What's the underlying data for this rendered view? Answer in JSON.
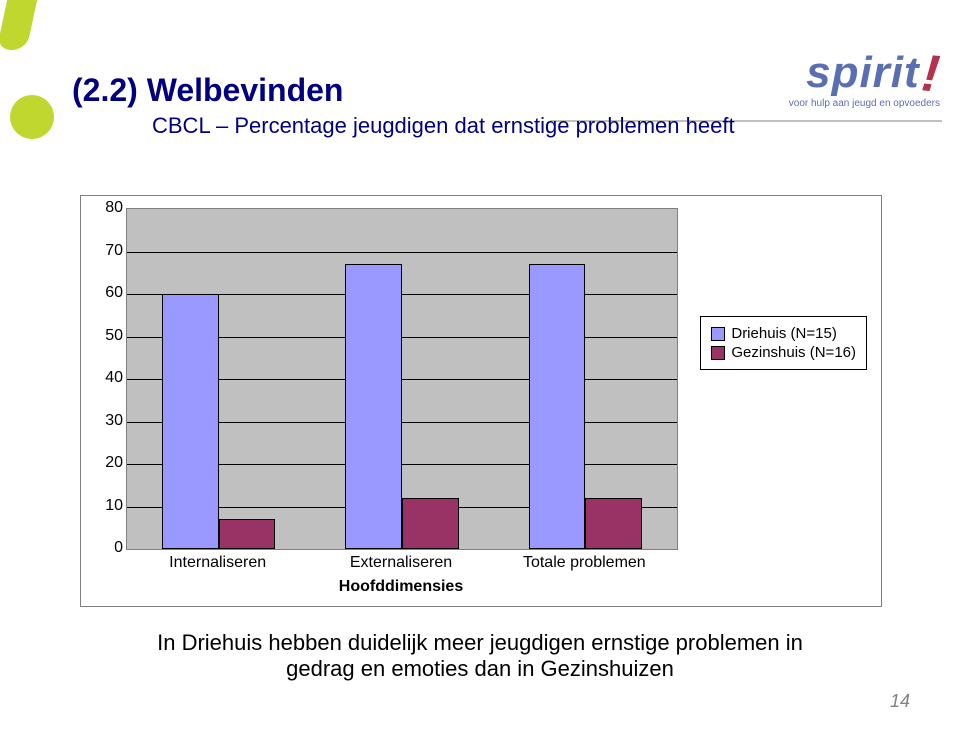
{
  "logo": {
    "brand_text": "spirit",
    "bang": "!",
    "tagline": "voor hulp aan jeugd en opvoeders"
  },
  "title": {
    "main": "(2.2) Welbevinden",
    "sub": "CBCL – Percentage jeugdigen dat ernstige problemen heeft"
  },
  "chart": {
    "type": "bar",
    "background_color": "#ffffff",
    "plot_background_color": "#c0c0c0",
    "grid_color": "#000000",
    "ylim": [
      0,
      80
    ],
    "ytick_step": 10,
    "categories": [
      "Internaliseren",
      "Externaliseren",
      "Totale problemen"
    ],
    "x_axis_label": "Hoofddimensies",
    "series": [
      {
        "name": "Driehuis (N=15)",
        "color": "#9999ff",
        "values": [
          60,
          67,
          67
        ]
      },
      {
        "name": "Gezinshuis (N=16)",
        "color": "#993366",
        "values": [
          7,
          12,
          12
        ]
      }
    ],
    "axis_fontsize": 16,
    "legend_fontsize": 15,
    "bar_group_width": 0.62
  },
  "caption": {
    "line1": "In Driehuis hebben duidelijk meer jeugdigen ernstige problemen in",
    "line2": "gedrag en emoties dan in Gezinshuizen"
  },
  "page_number": "14"
}
